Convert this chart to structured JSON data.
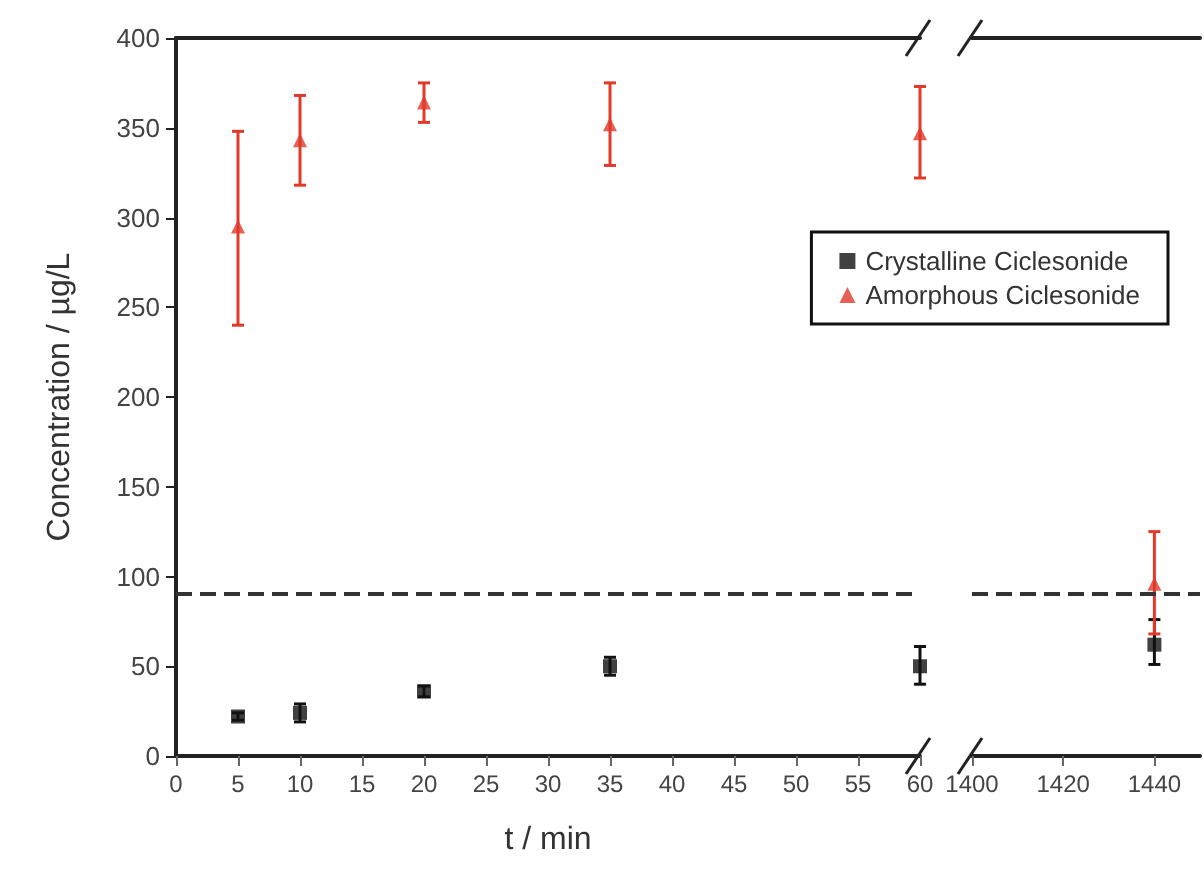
{
  "chart_data": [
    {
      "type": "scatter",
      "xlabel": "t / min",
      "ylabel": "Concentration / µg/L",
      "xlim": [
        0,
        60
      ],
      "xticks": [
        0,
        5,
        10,
        15,
        20,
        25,
        30,
        35,
        40,
        45,
        50,
        55,
        60
      ],
      "ylim": [
        0,
        400
      ],
      "yticks": [
        0,
        50,
        100,
        150,
        200,
        250,
        300,
        350,
        400
      ],
      "grid": false,
      "legend": "top right",
      "ref_lines": [
        {
          "axis": "y",
          "value": 90,
          "color": "#333333",
          "line_style": "dashed"
        }
      ],
      "series": [
        {
          "name": "Crystalline Ciclesonide",
          "color": "#111111",
          "marker": "square",
          "x": [
            5,
            10,
            20,
            35,
            60
          ],
          "values": [
            22,
            24,
            36,
            50,
            50
          ],
          "errors": [
            [
              20,
              24
            ],
            [
              19,
              29
            ],
            [
              33,
              39
            ],
            [
              45,
              55
            ],
            [
              40,
              61
            ]
          ]
        },
        {
          "name": "Amorphous Ciclesonide",
          "color": "#e03a2a",
          "marker": "triangle",
          "x": [
            5,
            10,
            20,
            35,
            60
          ],
          "values": [
            295,
            343,
            364,
            352,
            347
          ],
          "errors": [
            [
              240,
              348
            ],
            [
              318,
              368
            ],
            [
              353,
              375
            ],
            [
              329,
              375
            ],
            [
              322,
              373
            ]
          ]
        }
      ]
    },
    {
      "type": "scatter",
      "xlim": [
        1400,
        1450
      ],
      "xticks": [
        1400,
        1420,
        1440
      ],
      "ylim": [
        0,
        400
      ],
      "yticks": [
        0,
        50,
        100,
        150,
        200,
        250,
        300,
        350,
        400
      ],
      "tick_labels": "x",
      "grid": false,
      "ref_lines": [
        {
          "axis": "y",
          "value": 90,
          "color": "#333333",
          "line_style": "dashed"
        }
      ],
      "series": [
        {
          "color": "#111111",
          "marker": "square",
          "x": [
            1440
          ],
          "values": [
            62
          ],
          "errors": [
            [
              51,
              76
            ]
          ]
        },
        {
          "color": "#e03a2a",
          "marker": "triangle",
          "x": [
            1440
          ],
          "values": [
            96
          ],
          "errors": [
            [
              68,
              125
            ]
          ]
        }
      ]
    }
  ]
}
